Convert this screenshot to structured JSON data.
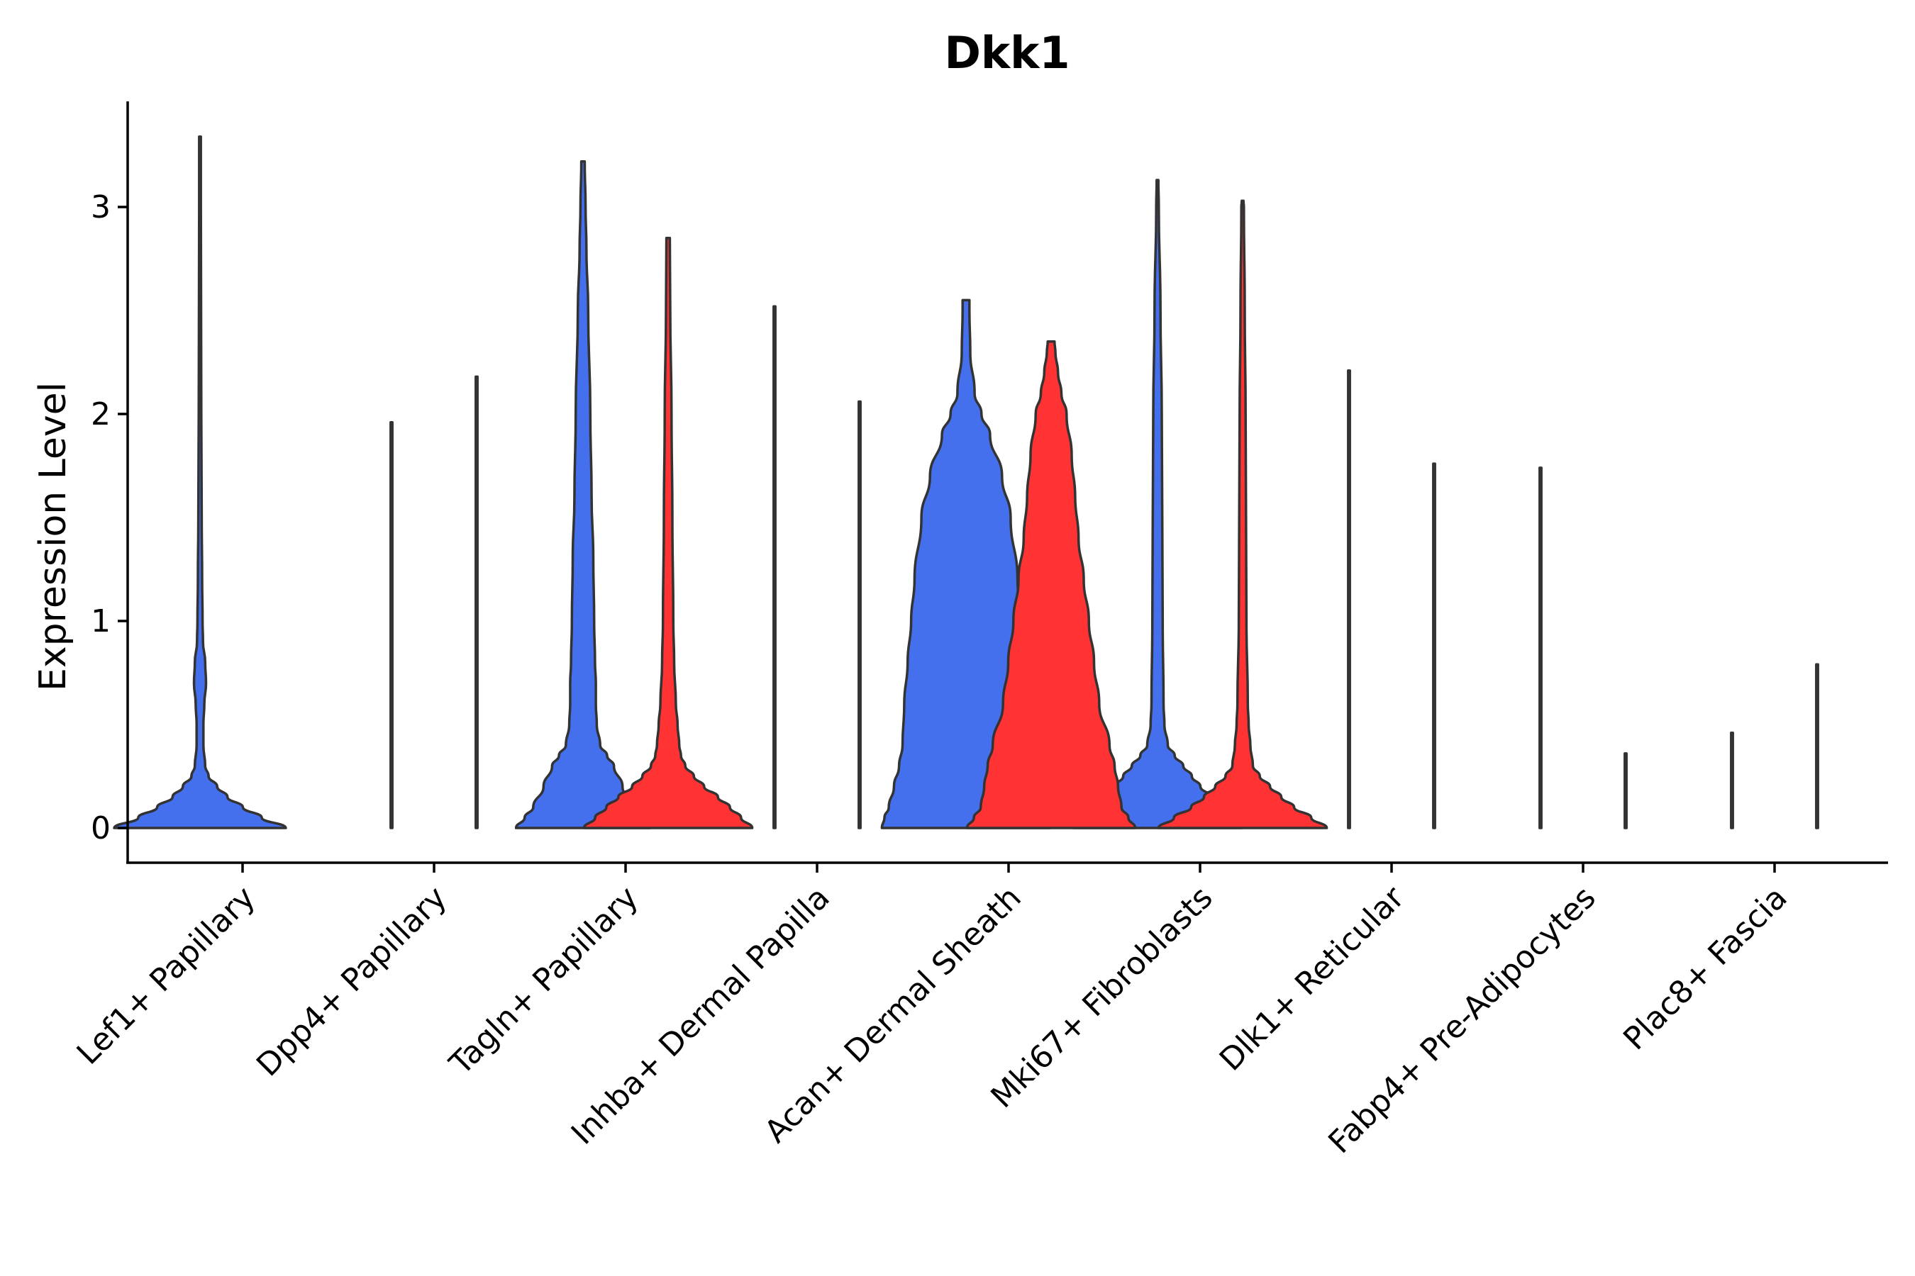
{
  "chart_data": {
    "type": "violin",
    "title": "Dkk1",
    "xlabel": "",
    "ylabel": "Expression Level",
    "ylim": [
      -0.17,
      3.52
    ],
    "yticks": [
      0,
      1,
      2,
      3
    ],
    "grid": false,
    "legend": "none",
    "colors": {
      "group_a": "#4470ee",
      "group_b": "#ff3333",
      "outline": "#333333"
    },
    "categories": [
      "Lef1+ Papillary",
      "Dpp4+ Papillary",
      "Tagln+ Papillary",
      "Inhba+ Dermal Papilla",
      "Acan+ Dermal Sheath",
      "Mki67+ Fibroblasts",
      "Dlk1+ Reticular",
      "Fabp4+ Pre-Adipocytes",
      "Plac8+ Fascia"
    ],
    "series": [
      {
        "name": "group_a",
        "color": "#4470ee",
        "violins": [
          {
            "category": "Lef1+ Papillary",
            "max": 3.34,
            "profile": [
              [
                0,
                1.0
              ],
              [
                0.05,
                0.72
              ],
              [
                0.1,
                0.5
              ],
              [
                0.15,
                0.32
              ],
              [
                0.2,
                0.2
              ],
              [
                0.25,
                0.1
              ],
              [
                0.3,
                0.06
              ],
              [
                0.4,
                0.04
              ],
              [
                0.5,
                0.04
              ],
              [
                0.6,
                0.05
              ],
              [
                0.7,
                0.07
              ],
              [
                0.8,
                0.06
              ],
              [
                0.9,
                0.035
              ],
              [
                1.0,
                0.03
              ],
              [
                1.2,
                0.025
              ],
              [
                1.5,
                0.02
              ],
              [
                2.0,
                0.015
              ],
              [
                2.5,
                0.012
              ],
              [
                3.0,
                0.01
              ],
              [
                3.34,
                0.008
              ]
            ]
          },
          {
            "category": "Dpp4+ Papillary",
            "max": 1.96,
            "profile": [
              [
                0,
                0.004
              ],
              [
                0.01,
                0.003
              ],
              [
                1.96,
                0.003
              ]
            ]
          },
          {
            "category": "Tagln+ Papillary",
            "max": 3.22,
            "profile": [
              [
                0,
                0.78
              ],
              [
                0.05,
                0.68
              ],
              [
                0.1,
                0.58
              ],
              [
                0.2,
                0.46
              ],
              [
                0.3,
                0.36
              ],
              [
                0.35,
                0.28
              ],
              [
                0.4,
                0.2
              ],
              [
                0.5,
                0.16
              ],
              [
                0.6,
                0.15
              ],
              [
                0.7,
                0.15
              ],
              [
                0.8,
                0.14
              ],
              [
                1.0,
                0.13
              ],
              [
                1.3,
                0.12
              ],
              [
                1.6,
                0.1
              ],
              [
                2.0,
                0.085
              ],
              [
                2.5,
                0.06
              ],
              [
                2.8,
                0.04
              ],
              [
                3.0,
                0.03
              ],
              [
                3.22,
                0.02
              ]
            ]
          },
          {
            "category": "Inhba+ Dermal Papilla",
            "max": 2.52,
            "profile": [
              [
                0,
                0.004
              ],
              [
                0.01,
                0.003
              ],
              [
                2.52,
                0.003
              ]
            ]
          },
          {
            "category": "Acan+ Dermal Sheath",
            "max": 2.55,
            "profile": [
              [
                0,
                0.98
              ],
              [
                0.05,
                0.95
              ],
              [
                0.1,
                0.9
              ],
              [
                0.2,
                0.84
              ],
              [
                0.3,
                0.78
              ],
              [
                0.4,
                0.74
              ],
              [
                0.6,
                0.72
              ],
              [
                0.8,
                0.68
              ],
              [
                1.0,
                0.64
              ],
              [
                1.2,
                0.6
              ],
              [
                1.5,
                0.52
              ],
              [
                1.7,
                0.42
              ],
              [
                1.9,
                0.28
              ],
              [
                2.0,
                0.18
              ],
              [
                2.1,
                0.1
              ],
              [
                2.3,
                0.05
              ],
              [
                2.5,
                0.04
              ],
              [
                2.55,
                0.04
              ]
            ]
          },
          {
            "category": "Mki67+ Fibroblasts",
            "max": 3.13,
            "profile": [
              [
                0,
                0.98
              ],
              [
                0.05,
                0.85
              ],
              [
                0.1,
                0.72
              ],
              [
                0.15,
                0.62
              ],
              [
                0.2,
                0.5
              ],
              [
                0.25,
                0.4
              ],
              [
                0.3,
                0.3
              ],
              [
                0.35,
                0.2
              ],
              [
                0.4,
                0.12
              ],
              [
                0.5,
                0.08
              ],
              [
                0.6,
                0.07
              ],
              [
                1.0,
                0.06
              ],
              [
                1.5,
                0.055
              ],
              [
                2.0,
                0.05
              ],
              [
                2.5,
                0.035
              ],
              [
                3.0,
                0.015
              ],
              [
                3.13,
                0.01
              ]
            ]
          },
          {
            "category": "Dlk1+ Reticular",
            "max": 2.21,
            "profile": [
              [
                0,
                0.004
              ],
              [
                0.01,
                0.003
              ],
              [
                2.21,
                0.003
              ]
            ]
          },
          {
            "category": "Fabp4+ Pre-Adipocytes",
            "max": 1.74,
            "profile": [
              [
                0,
                0.004
              ],
              [
                0.01,
                0.003
              ],
              [
                1.74,
                0.003
              ]
            ]
          },
          {
            "category": "Plac8+ Fascia",
            "max": 0.46,
            "profile": [
              [
                0,
                0.004
              ],
              [
                0.01,
                0.003
              ],
              [
                0.46,
                0.003
              ]
            ]
          }
        ]
      },
      {
        "name": "group_b",
        "color": "#ff3333",
        "violins": [
          {
            "category": "Lef1+ Papillary",
            "max": null,
            "profile": []
          },
          {
            "category": "Dpp4+ Papillary",
            "max": 2.18,
            "profile": [
              [
                0,
                0.004
              ],
              [
                0.01,
                0.003
              ],
              [
                2.18,
                0.003
              ]
            ]
          },
          {
            "category": "Tagln+ Papillary",
            "max": 2.85,
            "profile": [
              [
                0,
                0.98
              ],
              [
                0.05,
                0.85
              ],
              [
                0.1,
                0.72
              ],
              [
                0.15,
                0.58
              ],
              [
                0.2,
                0.42
              ],
              [
                0.25,
                0.3
              ],
              [
                0.3,
                0.2
              ],
              [
                0.35,
                0.15
              ],
              [
                0.4,
                0.13
              ],
              [
                0.5,
                0.11
              ],
              [
                0.6,
                0.09
              ],
              [
                0.8,
                0.07
              ],
              [
                1.0,
                0.06
              ],
              [
                1.5,
                0.05
              ],
              [
                2.0,
                0.04
              ],
              [
                2.5,
                0.025
              ],
              [
                2.85,
                0.02
              ]
            ]
          },
          {
            "category": "Inhba+ Dermal Papilla",
            "max": 2.06,
            "profile": [
              [
                0,
                0.004
              ],
              [
                0.01,
                0.003
              ],
              [
                2.06,
                0.003
              ]
            ]
          },
          {
            "category": "Acan+ Dermal Sheath",
            "max": 2.35,
            "profile": [
              [
                0,
                0.98
              ],
              [
                0.05,
                0.9
              ],
              [
                0.1,
                0.82
              ],
              [
                0.2,
                0.78
              ],
              [
                0.3,
                0.74
              ],
              [
                0.4,
                0.68
              ],
              [
                0.6,
                0.56
              ],
              [
                0.8,
                0.5
              ],
              [
                1.0,
                0.44
              ],
              [
                1.2,
                0.38
              ],
              [
                1.4,
                0.32
              ],
              [
                1.6,
                0.28
              ],
              [
                1.8,
                0.24
              ],
              [
                2.0,
                0.18
              ],
              [
                2.1,
                0.12
              ],
              [
                2.2,
                0.08
              ],
              [
                2.3,
                0.05
              ],
              [
                2.35,
                0.04
              ]
            ]
          },
          {
            "category": "Mki67+ Fibroblasts",
            "max": 3.03,
            "profile": [
              [
                0,
                0.98
              ],
              [
                0.05,
                0.8
              ],
              [
                0.1,
                0.6
              ],
              [
                0.15,
                0.45
              ],
              [
                0.2,
                0.32
              ],
              [
                0.25,
                0.2
              ],
              [
                0.3,
                0.12
              ],
              [
                0.4,
                0.09
              ],
              [
                0.5,
                0.07
              ],
              [
                0.6,
                0.06
              ],
              [
                1.0,
                0.045
              ],
              [
                1.5,
                0.04
              ],
              [
                2.0,
                0.035
              ],
              [
                2.5,
                0.025
              ],
              [
                3.0,
                0.015
              ],
              [
                3.03,
                0.01
              ]
            ]
          },
          {
            "category": "Dlk1+ Reticular",
            "max": 1.76,
            "profile": [
              [
                0,
                0.004
              ],
              [
                0.01,
                0.003
              ],
              [
                1.76,
                0.003
              ]
            ]
          },
          {
            "category": "Fabp4+ Pre-Adipocytes",
            "max": 0.36,
            "profile": [
              [
                0,
                0.004
              ],
              [
                0.01,
                0.003
              ],
              [
                0.36,
                0.003
              ]
            ]
          },
          {
            "category": "Plac8+ Fascia",
            "max": 0.79,
            "profile": [
              [
                0,
                0.004
              ],
              [
                0.01,
                0.003
              ],
              [
                0.79,
                0.003
              ]
            ]
          }
        ]
      }
    ]
  }
}
